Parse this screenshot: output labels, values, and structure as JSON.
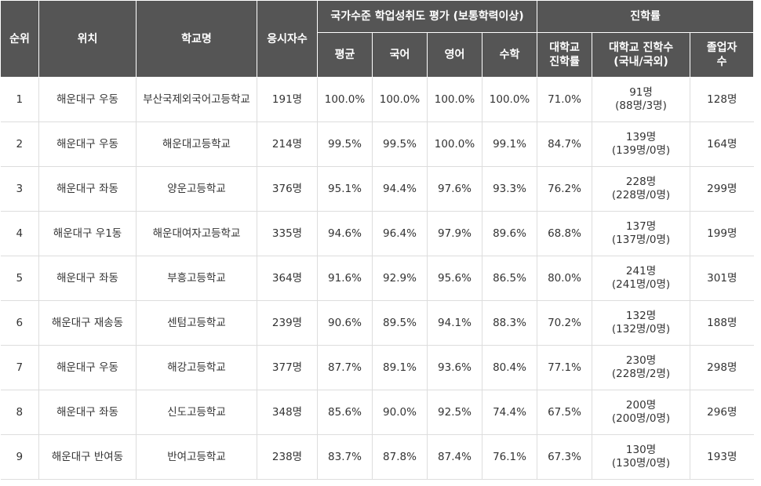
{
  "headers": {
    "rank": "순위",
    "location": "위치",
    "school": "학교명",
    "applicants": "응시자수",
    "national_group": "국가수준 학업성취도 평가 (보통학력이상)",
    "avg": "평균",
    "korean": "국어",
    "english": "영어",
    "math": "수학",
    "advancement_group": "진학률",
    "univ_rate_1": "대학교",
    "univ_rate_2": "진학률",
    "univ_count_1": "대학교 진학수",
    "univ_count_2": "(국내/국외)",
    "graduates_1": "졸업자",
    "graduates_2": "수"
  },
  "rows": [
    {
      "rank": "1",
      "location": "해운대구 우동",
      "school": "부산국제외국어고등학교",
      "applicants": "191명",
      "avg": "100.0%",
      "korean": "100.0%",
      "english": "100.0%",
      "math": "100.0%",
      "univ_rate": "71.0%",
      "univ_count": "91명",
      "univ_detail": "(88명/3명)",
      "graduates": "128명"
    },
    {
      "rank": "2",
      "location": "해운대구 우동",
      "school": "해운대고등학교",
      "applicants": "214명",
      "avg": "99.5%",
      "korean": "99.5%",
      "english": "100.0%",
      "math": "99.1%",
      "univ_rate": "84.7%",
      "univ_count": "139명",
      "univ_detail": "(139명/0명)",
      "graduates": "164명"
    },
    {
      "rank": "3",
      "location": "해운대구 좌동",
      "school": "양운고등학교",
      "applicants": "376명",
      "avg": "95.1%",
      "korean": "94.4%",
      "english": "97.6%",
      "math": "93.3%",
      "univ_rate": "76.2%",
      "univ_count": "228명",
      "univ_detail": "(228명/0명)",
      "graduates": "299명"
    },
    {
      "rank": "4",
      "location": "해운대구 우1동",
      "school": "해운대여자고등학교",
      "applicants": "335명",
      "avg": "94.6%",
      "korean": "96.4%",
      "english": "97.9%",
      "math": "89.6%",
      "univ_rate": "68.8%",
      "univ_count": "137명",
      "univ_detail": "(137명/0명)",
      "graduates": "199명"
    },
    {
      "rank": "5",
      "location": "해운대구 좌동",
      "school": "부흥고등학교",
      "applicants": "364명",
      "avg": "91.6%",
      "korean": "92.9%",
      "english": "95.6%",
      "math": "86.5%",
      "univ_rate": "80.0%",
      "univ_count": "241명",
      "univ_detail": "(241명/0명)",
      "graduates": "301명"
    },
    {
      "rank": "6",
      "location": "해운대구 재송동",
      "school": "센텀고등학교",
      "applicants": "239명",
      "avg": "90.6%",
      "korean": "89.5%",
      "english": "94.1%",
      "math": "88.3%",
      "univ_rate": "70.2%",
      "univ_count": "132명",
      "univ_detail": "(132명/0명)",
      "graduates": "188명"
    },
    {
      "rank": "7",
      "location": "해운대구 우동",
      "school": "해강고등학교",
      "applicants": "377명",
      "avg": "87.7%",
      "korean": "89.1%",
      "english": "93.6%",
      "math": "80.4%",
      "univ_rate": "77.1%",
      "univ_count": "230명",
      "univ_detail": "(228명/2명)",
      "graduates": "298명"
    },
    {
      "rank": "8",
      "location": "해운대구 좌동",
      "school": "신도고등학교",
      "applicants": "348명",
      "avg": "85.6%",
      "korean": "90.0%",
      "english": "92.5%",
      "math": "74.4%",
      "univ_rate": "67.5%",
      "univ_count": "200명",
      "univ_detail": "(200명/0명)",
      "graduates": "296명"
    },
    {
      "rank": "9",
      "location": "해운대구 반여동",
      "school": "반여고등학교",
      "applicants": "238명",
      "avg": "83.7%",
      "korean": "87.8%",
      "english": "87.4%",
      "math": "76.1%",
      "univ_rate": "67.3%",
      "univ_count": "130명",
      "univ_detail": "(130명/0명)",
      "graduates": "193명"
    }
  ]
}
